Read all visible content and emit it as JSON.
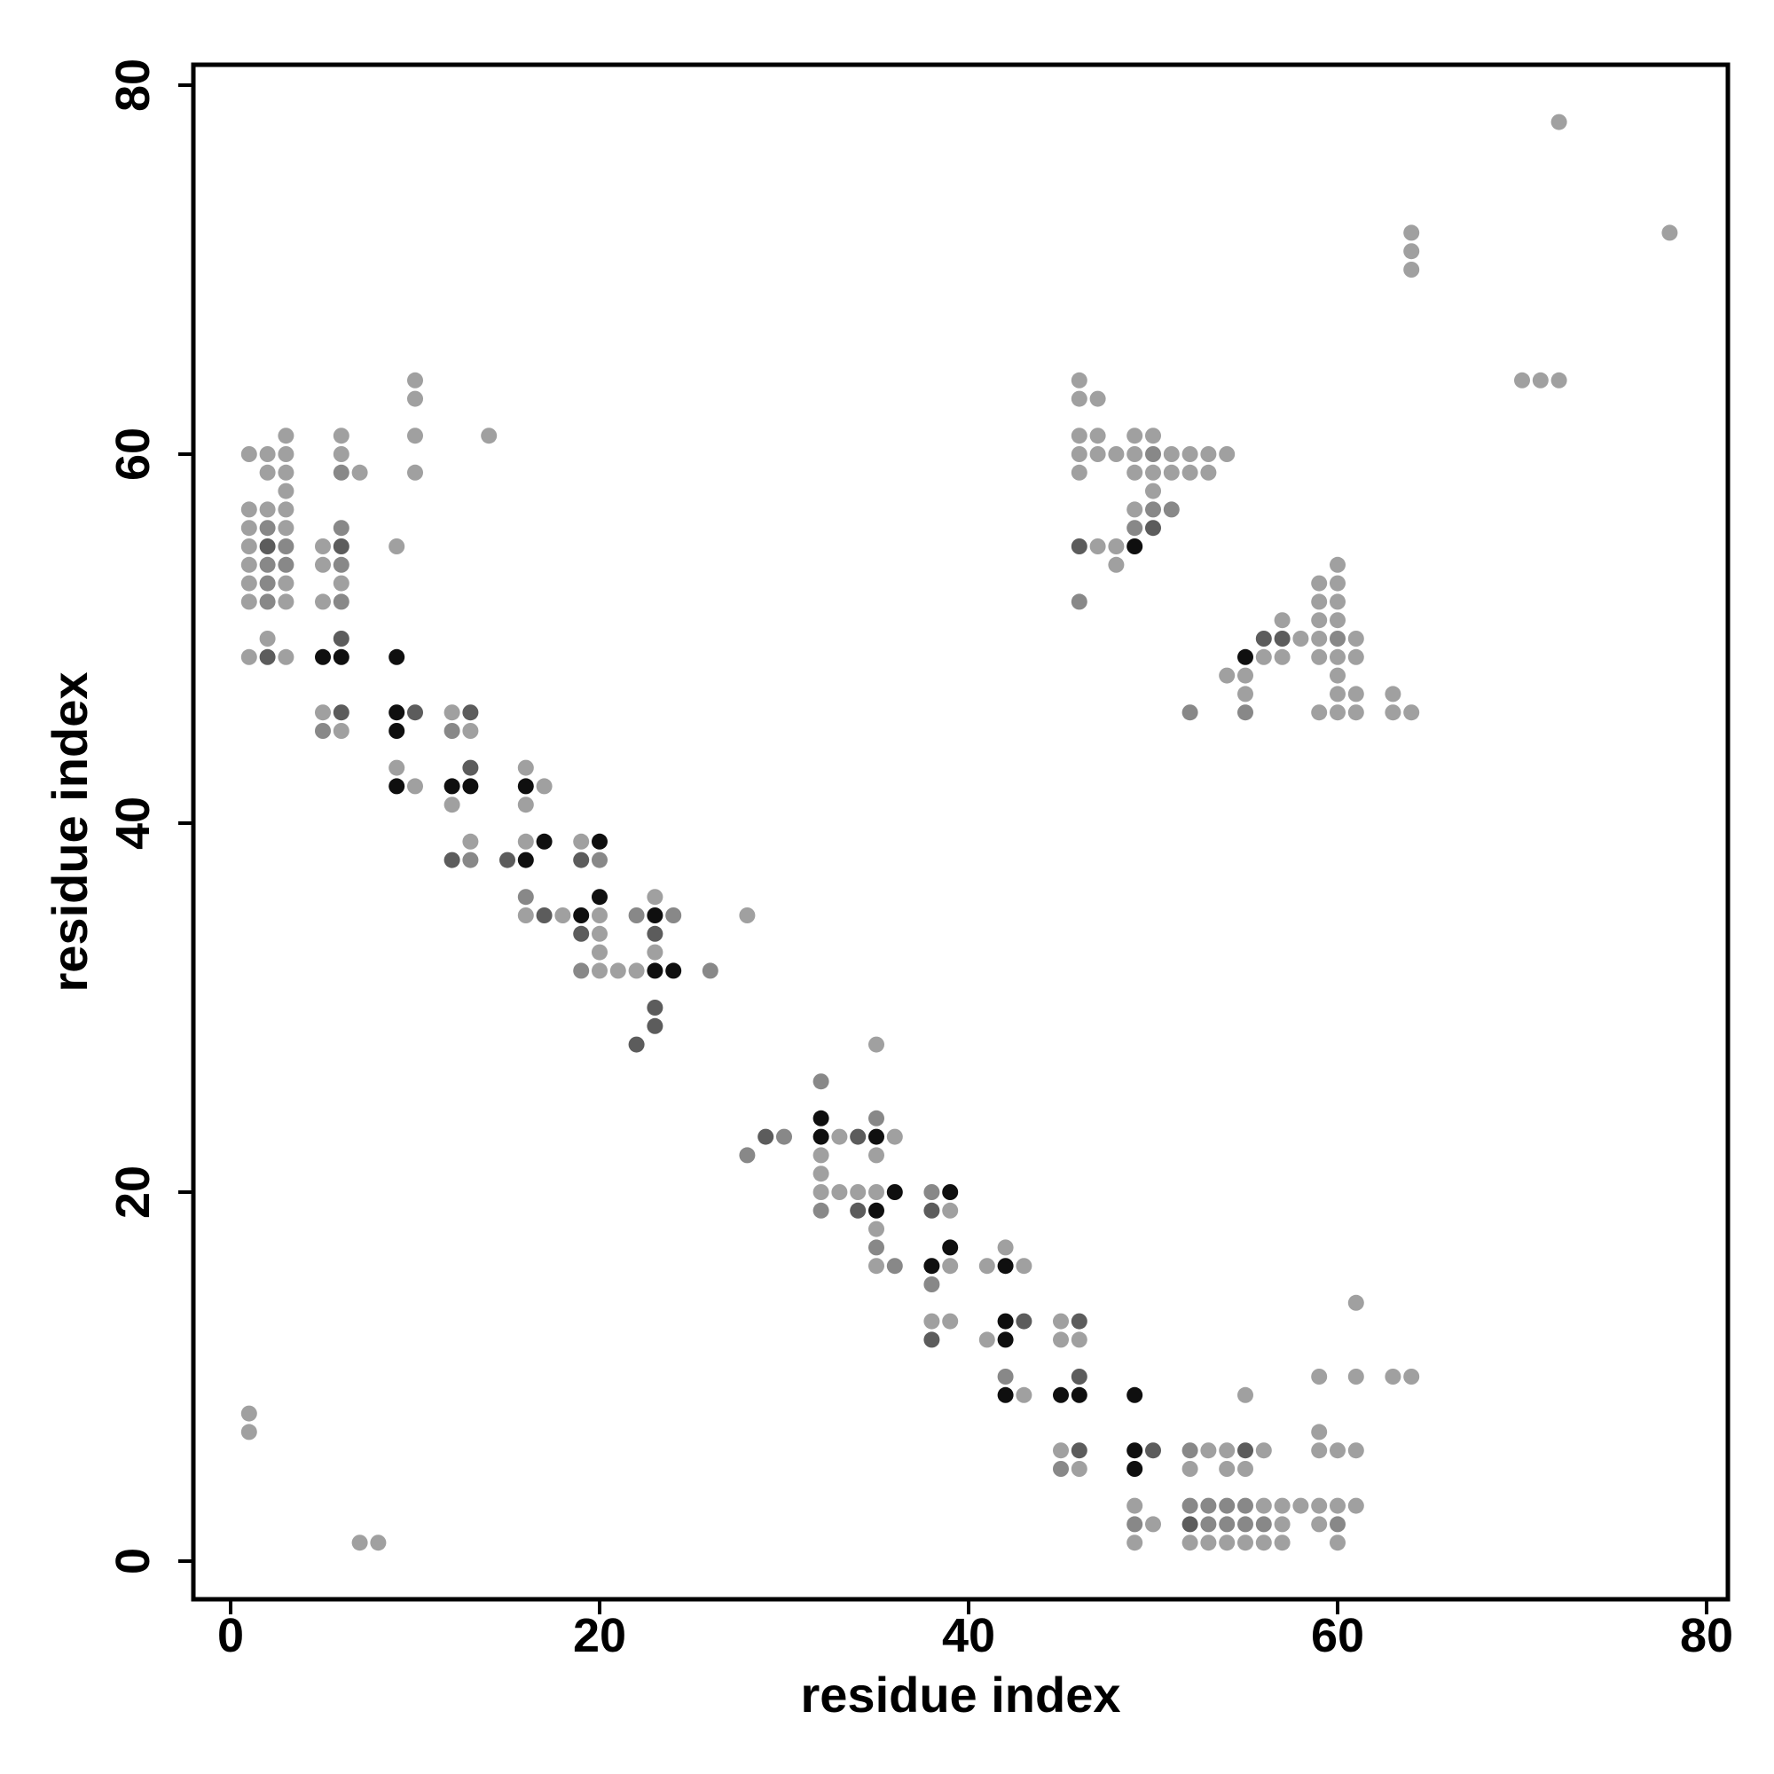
{
  "chart_data": {
    "type": "scatter",
    "xlabel": "residue index",
    "ylabel": "residue index",
    "xlim": [
      -2,
      81
    ],
    "ylim": [
      -2,
      81
    ],
    "xticks": [
      0,
      20,
      40,
      60,
      80
    ],
    "yticks": [
      0,
      20,
      40,
      60,
      80
    ],
    "grid": false,
    "legend": "none",
    "shade_colors": {
      "1": "#a0a0a0",
      "2": "#888888",
      "3": "#5c5c5c",
      "4": "#0f0f0f"
    },
    "points": [
      [
        1,
        60,
        1
      ],
      [
        2,
        60,
        1
      ],
      [
        3,
        60,
        1
      ],
      [
        3,
        61,
        1
      ],
      [
        2,
        59,
        1
      ],
      [
        3,
        59,
        1
      ],
      [
        3,
        58,
        1
      ],
      [
        1,
        57,
        1
      ],
      [
        2,
        57,
        1
      ],
      [
        3,
        57,
        1
      ],
      [
        1,
        56,
        1
      ],
      [
        2,
        56,
        2
      ],
      [
        3,
        56,
        1
      ],
      [
        1,
        55,
        1
      ],
      [
        2,
        55,
        3
      ],
      [
        3,
        55,
        2
      ],
      [
        1,
        54,
        1
      ],
      [
        2,
        54,
        2
      ],
      [
        3,
        54,
        2
      ],
      [
        1,
        53,
        1
      ],
      [
        2,
        53,
        2
      ],
      [
        3,
        53,
        1
      ],
      [
        1,
        52,
        1
      ],
      [
        2,
        52,
        2
      ],
      [
        3,
        52,
        1
      ],
      [
        2,
        50,
        1
      ],
      [
        1,
        49,
        1
      ],
      [
        2,
        49,
        3
      ],
      [
        3,
        49,
        1
      ],
      [
        6,
        61,
        1
      ],
      [
        6,
        60,
        1
      ],
      [
        6,
        59,
        2
      ],
      [
        7,
        59,
        1
      ],
      [
        6,
        56,
        2
      ],
      [
        5,
        55,
        1
      ],
      [
        6,
        55,
        3
      ],
      [
        5,
        54,
        1
      ],
      [
        6,
        54,
        2
      ],
      [
        6,
        53,
        1
      ],
      [
        5,
        52,
        1
      ],
      [
        6,
        52,
        2
      ],
      [
        6,
        50,
        3
      ],
      [
        5,
        49,
        4
      ],
      [
        6,
        49,
        4
      ],
      [
        5,
        46,
        1
      ],
      [
        6,
        46,
        3
      ],
      [
        5,
        45,
        2
      ],
      [
        6,
        45,
        1
      ],
      [
        10,
        64,
        1
      ],
      [
        10,
        63,
        1
      ],
      [
        10,
        61,
        1
      ],
      [
        14,
        61,
        1
      ],
      [
        10,
        59,
        1
      ],
      [
        9,
        55,
        1
      ],
      [
        9,
        49,
        4
      ],
      [
        9,
        46,
        4
      ],
      [
        10,
        46,
        3
      ],
      [
        9,
        45,
        4
      ],
      [
        9,
        43,
        1
      ],
      [
        9,
        42,
        4
      ],
      [
        10,
        42,
        1
      ],
      [
        12,
        46,
        1
      ],
      [
        13,
        46,
        3
      ],
      [
        12,
        45,
        2
      ],
      [
        13,
        45,
        1
      ],
      [
        13,
        43,
        3
      ],
      [
        12,
        42,
        4
      ],
      [
        13,
        42,
        4
      ],
      [
        12,
        41,
        1
      ],
      [
        13,
        39,
        1
      ],
      [
        12,
        38,
        3
      ],
      [
        13,
        38,
        2
      ],
      [
        16,
        43,
        1
      ],
      [
        16,
        42,
        4
      ],
      [
        17,
        42,
        1
      ],
      [
        16,
        41,
        1
      ],
      [
        16,
        39,
        1
      ],
      [
        17,
        39,
        4
      ],
      [
        15,
        38,
        3
      ],
      [
        16,
        38,
        4
      ],
      [
        16,
        36,
        2
      ],
      [
        16,
        35,
        1
      ],
      [
        17,
        35,
        3
      ],
      [
        18,
        35,
        1
      ],
      [
        19,
        39,
        1
      ],
      [
        20,
        39,
        4
      ],
      [
        19,
        38,
        3
      ],
      [
        20,
        38,
        2
      ],
      [
        20,
        36,
        4
      ],
      [
        19,
        35,
        4
      ],
      [
        20,
        35,
        1
      ],
      [
        19,
        34,
        3
      ],
      [
        20,
        34,
        1
      ],
      [
        20,
        33,
        1
      ],
      [
        19,
        32,
        2
      ],
      [
        20,
        32,
        1
      ],
      [
        21,
        32,
        1
      ],
      [
        22,
        32,
        1
      ],
      [
        23,
        36,
        1
      ],
      [
        22,
        35,
        2
      ],
      [
        23,
        35,
        4
      ],
      [
        24,
        35,
        2
      ],
      [
        28,
        35,
        1
      ],
      [
        23,
        34,
        3
      ],
      [
        23,
        33,
        1
      ],
      [
        23,
        32,
        4
      ],
      [
        24,
        32,
        4
      ],
      [
        26,
        32,
        2
      ],
      [
        23,
        30,
        3
      ],
      [
        23,
        29,
        3
      ],
      [
        22,
        28,
        3
      ],
      [
        28,
        22,
        2
      ],
      [
        29,
        23,
        3
      ],
      [
        30,
        23,
        2
      ],
      [
        32,
        26,
        2
      ],
      [
        32,
        24,
        4
      ],
      [
        32,
        23,
        4
      ],
      [
        33,
        23,
        1
      ],
      [
        34,
        23,
        3
      ],
      [
        35,
        24,
        2
      ],
      [
        35,
        23,
        4
      ],
      [
        36,
        23,
        1
      ],
      [
        35,
        28,
        1
      ],
      [
        35,
        22,
        1
      ],
      [
        32,
        22,
        1
      ],
      [
        32,
        21,
        1
      ],
      [
        32,
        20,
        1
      ],
      [
        33,
        20,
        1
      ],
      [
        34,
        20,
        1
      ],
      [
        35,
        20,
        1
      ],
      [
        36,
        20,
        4
      ],
      [
        32,
        19,
        2
      ],
      [
        34,
        19,
        3
      ],
      [
        35,
        19,
        4
      ],
      [
        35,
        18,
        1
      ],
      [
        35,
        17,
        2
      ],
      [
        35,
        16,
        1
      ],
      [
        36,
        16,
        2
      ],
      [
        38,
        20,
        2
      ],
      [
        39,
        20,
        4
      ],
      [
        38,
        19,
        3
      ],
      [
        39,
        19,
        1
      ],
      [
        39,
        17,
        4
      ],
      [
        38,
        16,
        4
      ],
      [
        39,
        16,
        1
      ],
      [
        38,
        15,
        2
      ],
      [
        38,
        13,
        1
      ],
      [
        39,
        13,
        1
      ],
      [
        38,
        12,
        3
      ],
      [
        41,
        16,
        1
      ],
      [
        42,
        17,
        1
      ],
      [
        42,
        16,
        4
      ],
      [
        43,
        16,
        1
      ],
      [
        42,
        13,
        4
      ],
      [
        43,
        13,
        3
      ],
      [
        41,
        12,
        1
      ],
      [
        42,
        12,
        4
      ],
      [
        42,
        10,
        2
      ],
      [
        42,
        9,
        4
      ],
      [
        43,
        9,
        1
      ],
      [
        45,
        13,
        1
      ],
      [
        46,
        13,
        3
      ],
      [
        45,
        12,
        1
      ],
      [
        46,
        12,
        1
      ],
      [
        46,
        10,
        3
      ],
      [
        45,
        9,
        4
      ],
      [
        46,
        9,
        4
      ],
      [
        45,
        6,
        1
      ],
      [
        46,
        6,
        3
      ],
      [
        45,
        5,
        2
      ],
      [
        46,
        5,
        1
      ],
      [
        49,
        9,
        4
      ],
      [
        49,
        6,
        4
      ],
      [
        50,
        6,
        3
      ],
      [
        49,
        5,
        4
      ],
      [
        49,
        3,
        1
      ],
      [
        49,
        2,
        2
      ],
      [
        50,
        2,
        1
      ],
      [
        49,
        1,
        1
      ],
      [
        52,
        6,
        2
      ],
      [
        53,
        6,
        1
      ],
      [
        54,
        6,
        1
      ],
      [
        55,
        6,
        3
      ],
      [
        56,
        6,
        1
      ],
      [
        52,
        5,
        1
      ],
      [
        54,
        5,
        1
      ],
      [
        55,
        5,
        1
      ],
      [
        52,
        3,
        2
      ],
      [
        53,
        3,
        2
      ],
      [
        54,
        3,
        2
      ],
      [
        55,
        3,
        2
      ],
      [
        56,
        3,
        1
      ],
      [
        57,
        3,
        1
      ],
      [
        58,
        3,
        1
      ],
      [
        59,
        3,
        1
      ],
      [
        60,
        3,
        1
      ],
      [
        61,
        3,
        1
      ],
      [
        52,
        2,
        3
      ],
      [
        53,
        2,
        2
      ],
      [
        54,
        2,
        2
      ],
      [
        55,
        2,
        2
      ],
      [
        56,
        2,
        2
      ],
      [
        57,
        2,
        1
      ],
      [
        59,
        2,
        1
      ],
      [
        60,
        2,
        2
      ],
      [
        52,
        1,
        1
      ],
      [
        53,
        1,
        1
      ],
      [
        54,
        1,
        1
      ],
      [
        55,
        1,
        1
      ],
      [
        56,
        1,
        1
      ],
      [
        57,
        1,
        1
      ],
      [
        60,
        1,
        1
      ],
      [
        55,
        9,
        1
      ],
      [
        59,
        10,
        1
      ],
      [
        61,
        10,
        1
      ],
      [
        63,
        10,
        1
      ],
      [
        64,
        10,
        1
      ],
      [
        59,
        7,
        1
      ],
      [
        59,
        6,
        1
      ],
      [
        60,
        6,
        1
      ],
      [
        61,
        6,
        1
      ],
      [
        61,
        14,
        1
      ],
      [
        1,
        8,
        1
      ],
      [
        1,
        7,
        1
      ],
      [
        7,
        1,
        1
      ],
      [
        8,
        1,
        1
      ],
      [
        46,
        64,
        1
      ],
      [
        46,
        63,
        1
      ],
      [
        47,
        63,
        1
      ],
      [
        46,
        61,
        1
      ],
      [
        47,
        61,
        1
      ],
      [
        49,
        61,
        1
      ],
      [
        50,
        61,
        1
      ],
      [
        46,
        60,
        1
      ],
      [
        47,
        60,
        1
      ],
      [
        48,
        60,
        1
      ],
      [
        49,
        60,
        1
      ],
      [
        50,
        60,
        2
      ],
      [
        51,
        60,
        1
      ],
      [
        52,
        60,
        1
      ],
      [
        53,
        60,
        1
      ],
      [
        54,
        60,
        1
      ],
      [
        46,
        59,
        1
      ],
      [
        49,
        59,
        1
      ],
      [
        50,
        59,
        1
      ],
      [
        51,
        59,
        1
      ],
      [
        52,
        59,
        1
      ],
      [
        53,
        59,
        1
      ],
      [
        50,
        58,
        1
      ],
      [
        49,
        57,
        1
      ],
      [
        50,
        57,
        2
      ],
      [
        51,
        57,
        2
      ],
      [
        49,
        56,
        2
      ],
      [
        50,
        56,
        3
      ],
      [
        46,
        55,
        3
      ],
      [
        47,
        55,
        1
      ],
      [
        48,
        55,
        1
      ],
      [
        49,
        55,
        4
      ],
      [
        48,
        54,
        1
      ],
      [
        46,
        52,
        2
      ],
      [
        60,
        54,
        1
      ],
      [
        59,
        53,
        1
      ],
      [
        60,
        53,
        1
      ],
      [
        59,
        52,
        1
      ],
      [
        60,
        52,
        1
      ],
      [
        57,
        51,
        1
      ],
      [
        59,
        51,
        1
      ],
      [
        60,
        51,
        1
      ],
      [
        56,
        50,
        3
      ],
      [
        57,
        50,
        3
      ],
      [
        58,
        50,
        1
      ],
      [
        59,
        50,
        1
      ],
      [
        60,
        50,
        2
      ],
      [
        61,
        50,
        1
      ],
      [
        55,
        49,
        4
      ],
      [
        56,
        49,
        1
      ],
      [
        57,
        49,
        1
      ],
      [
        59,
        49,
        1
      ],
      [
        60,
        49,
        1
      ],
      [
        61,
        49,
        1
      ],
      [
        54,
        48,
        1
      ],
      [
        55,
        48,
        1
      ],
      [
        60,
        48,
        1
      ],
      [
        55,
        47,
        1
      ],
      [
        60,
        47,
        1
      ],
      [
        61,
        47,
        1
      ],
      [
        63,
        47,
        1
      ],
      [
        52,
        46,
        2
      ],
      [
        55,
        46,
        2
      ],
      [
        59,
        46,
        1
      ],
      [
        60,
        46,
        1
      ],
      [
        61,
        46,
        1
      ],
      [
        63,
        46,
        1
      ],
      [
        64,
        46,
        1
      ],
      [
        64,
        72,
        1
      ],
      [
        64,
        71,
        1
      ],
      [
        64,
        70,
        1
      ],
      [
        70,
        64,
        1
      ],
      [
        71,
        64,
        1
      ],
      [
        72,
        64,
        1
      ],
      [
        72,
        78,
        1
      ],
      [
        78,
        72,
        1
      ]
    ]
  }
}
